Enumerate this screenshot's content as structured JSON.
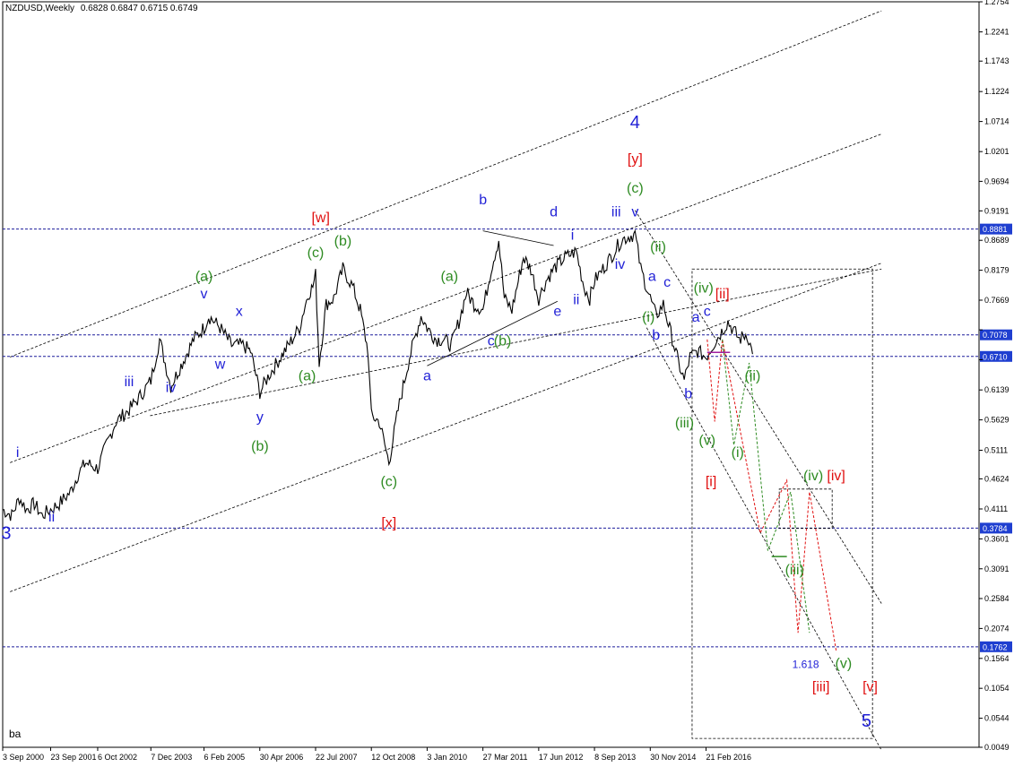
{
  "header": {
    "symbol": "NZDUSD,Weekly",
    "ohlc": "0.6828 0.6847 0.6715 0.6749"
  },
  "corner_text": "ba",
  "colors": {
    "blue": "#1f1fd6",
    "green": "#2e8b22",
    "red": "#e01010",
    "price": "#000000",
    "grid": "#1c1c9c",
    "markerbg": "#1f3fd0"
  },
  "chart_data": {
    "type": "line",
    "title": "NZDUSD,Weekly",
    "ylim": [
      0.0049,
      1.2754
    ],
    "y_ticks": [
      "1.2754",
      "1.2241",
      "1.1743",
      "1.1224",
      "1.0714",
      "1.0201",
      "0.9694",
      "0.9191",
      "0.8689",
      "0.8179",
      "0.7669",
      "0.7163",
      "0.6654",
      "0.6139",
      "0.5629",
      "0.5111",
      "0.4624",
      "0.4111",
      "0.3601",
      "0.3091",
      "0.2584",
      "0.2074",
      "0.1564",
      "0.1054",
      "0.0544",
      "0.0049"
    ],
    "x_ticks": [
      "3 Sep 2000",
      "23 Sep 2001",
      "6 Oct 2002",
      "7 Dec 2003",
      "6 Feb 2005",
      "30 Apr 2006",
      "22 Jul 2007",
      "12 Oct 2008",
      "3 Jan 2010",
      "27 Mar 2011",
      "17 Jun 2012",
      "8 Sep 2013",
      "30 Nov 2014",
      "21 Feb 2016"
    ],
    "x_range": [
      "3 Sep 2000",
      "5 Mar 2017"
    ],
    "series": [
      {
        "values": [
          [
            "2000-09-03",
            0.41
          ],
          [
            "2000-11-15",
            0.4
          ],
          [
            "2001-01-15",
            0.43
          ],
          [
            "2001-03-15",
            0.41
          ],
          [
            "2001-05-15",
            0.42
          ],
          [
            "2001-07-15",
            0.4
          ],
          [
            "2001-09-23",
            0.41
          ],
          [
            "2001-12-01",
            0.42
          ],
          [
            "2002-03-01",
            0.44
          ],
          [
            "2002-05-01",
            0.47
          ],
          [
            "2002-07-01",
            0.49
          ],
          [
            "2002-10-06",
            0.48
          ],
          [
            "2002-12-15",
            0.52
          ],
          [
            "2003-03-01",
            0.56
          ],
          [
            "2003-06-15",
            0.58
          ],
          [
            "2003-09-01",
            0.6
          ],
          [
            "2003-12-07",
            0.63
          ],
          [
            "2004-02-15",
            0.7
          ],
          [
            "2004-05-15",
            0.62
          ],
          [
            "2004-08-15",
            0.66
          ],
          [
            "2004-11-15",
            0.7
          ],
          [
            "2005-02-06",
            0.72
          ],
          [
            "2005-03-15",
            0.74
          ],
          [
            "2005-06-15",
            0.72
          ],
          [
            "2005-09-15",
            0.69
          ],
          [
            "2005-12-15",
            0.69
          ],
          [
            "2006-02-15",
            0.68
          ],
          [
            "2006-04-30",
            0.61
          ],
          [
            "2006-07-15",
            0.64
          ],
          [
            "2006-10-15",
            0.67
          ],
          [
            "2007-01-15",
            0.7
          ],
          [
            "2007-03-15",
            0.72
          ],
          [
            "2007-04-30",
            0.76
          ],
          [
            "2007-05-31",
            0.78
          ],
          [
            "2007-06-30",
            0.79
          ],
          [
            "2007-07-22",
            0.81
          ],
          [
            "2007-08-20",
            0.66
          ],
          [
            "2007-10-15",
            0.76
          ],
          [
            "2007-12-15",
            0.77
          ],
          [
            "2008-02-26",
            0.82
          ],
          [
            "2008-05-15",
            0.79
          ],
          [
            "2008-07-15",
            0.75
          ],
          [
            "2008-09-15",
            0.68
          ],
          [
            "2008-10-12",
            0.57
          ],
          [
            "2008-12-15",
            0.56
          ],
          [
            "2009-03-02",
            0.49
          ],
          [
            "2009-05-15",
            0.58
          ],
          [
            "2009-08-15",
            0.67
          ],
          [
            "2009-11-15",
            0.74
          ],
          [
            "2010-01-03",
            0.72
          ],
          [
            "2010-03-15",
            0.7
          ],
          [
            "2010-05-15",
            0.7
          ],
          [
            "2010-07-15",
            0.69
          ],
          [
            "2010-09-15",
            0.73
          ],
          [
            "2010-11-15",
            0.78
          ],
          [
            "2011-01-15",
            0.76
          ],
          [
            "2011-03-27",
            0.75
          ],
          [
            "2011-06-01",
            0.82
          ],
          [
            "2011-08-01",
            0.87
          ],
          [
            "2011-09-15",
            0.77
          ],
          [
            "2011-11-15",
            0.75
          ],
          [
            "2012-02-15",
            0.84
          ],
          [
            "2012-04-15",
            0.82
          ],
          [
            "2012-06-17",
            0.77
          ],
          [
            "2012-08-15",
            0.8
          ],
          [
            "2012-10-15",
            0.82
          ],
          [
            "2013-01-15",
            0.84
          ],
          [
            "2013-04-15",
            0.85
          ],
          [
            "2013-06-15",
            0.79
          ],
          [
            "2013-08-01",
            0.77
          ],
          [
            "2013-09-08",
            0.8
          ],
          [
            "2013-11-15",
            0.82
          ],
          [
            "2014-01-15",
            0.84
          ],
          [
            "2014-04-15",
            0.87
          ],
          [
            "2014-07-31",
            0.88
          ],
          [
            "2014-09-15",
            0.82
          ],
          [
            "2014-11-30",
            0.77
          ],
          [
            "2015-01-15",
            0.74
          ],
          [
            "2015-03-15",
            0.76
          ],
          [
            "2015-05-15",
            0.71
          ],
          [
            "2015-07-15",
            0.66
          ],
          [
            "2015-08-30",
            0.63
          ],
          [
            "2015-10-15",
            0.67
          ],
          [
            "2015-12-15",
            0.68
          ],
          [
            "2016-02-21",
            0.67
          ],
          [
            "2016-04-15",
            0.69
          ],
          [
            "2016-06-15",
            0.71
          ],
          [
            "2016-08-15",
            0.73
          ],
          [
            "2016-09-15",
            0.72
          ],
          [
            "2016-11-15",
            0.7
          ],
          [
            "2017-01-15",
            0.71
          ],
          [
            "2017-02-10",
            0.69
          ],
          [
            "2017-03-01",
            0.6749
          ]
        ]
      }
    ],
    "horizontal_lines": [
      {
        "label": "0.8881",
        "value": 0.8881
      },
      {
        "label": "0.7078",
        "value": 0.7078
      },
      {
        "label": "0.6710",
        "value": 0.671
      },
      {
        "label": "0.3784",
        "value": 0.3784
      },
      {
        "label": "0.1762",
        "value": 0.1762
      }
    ],
    "wave_labels": [
      {
        "text": "3",
        "color": "blue",
        "size": 20,
        "date": "2000-10-01",
        "price": 0.36
      },
      {
        "text": "i",
        "color": "blue",
        "size": 16,
        "date": "2001-01-01",
        "price": 0.5
      },
      {
        "text": "ii",
        "color": "blue",
        "size": 16,
        "date": "2001-10-01",
        "price": 0.39
      },
      {
        "text": "iii",
        "color": "blue",
        "size": 16,
        "date": "2003-06-15",
        "price": 0.62
      },
      {
        "text": "iv",
        "color": "blue",
        "size": 16,
        "date": "2004-05-15",
        "price": 0.61
      },
      {
        "text": "v",
        "color": "blue",
        "size": 16,
        "date": "2005-02-06",
        "price": 0.77
      },
      {
        "text": "w",
        "color": "blue",
        "size": 16,
        "date": "2005-06-15",
        "price": 0.65
      },
      {
        "text": "x",
        "color": "blue",
        "size": 16,
        "date": "2005-11-15",
        "price": 0.74
      },
      {
        "text": "y",
        "color": "blue",
        "size": 16,
        "date": "2006-05-01",
        "price": 0.56
      },
      {
        "text": "(a)",
        "color": "green",
        "size": 16,
        "date": "2005-02-06",
        "price": 0.8
      },
      {
        "text": "(b)",
        "color": "green",
        "size": 16,
        "date": "2006-05-01",
        "price": 0.51
      },
      {
        "text": "(c)",
        "color": "green",
        "size": 16,
        "date": "2007-07-22",
        "price": 0.84
      },
      {
        "text": "(a)",
        "color": "green",
        "size": 16,
        "date": "2007-05-15",
        "price": 0.63
      },
      {
        "text": "[w]",
        "color": "red",
        "size": 16,
        "date": "2007-09-01",
        "price": 0.9
      },
      {
        "text": "(b)",
        "color": "green",
        "size": 16,
        "date": "2008-02-26",
        "price": 0.86
      },
      {
        "text": "(c)",
        "color": "green",
        "size": 16,
        "date": "2009-03-02",
        "price": 0.45
      },
      {
        "text": "[x]",
        "color": "red",
        "size": 16,
        "date": "2009-03-02",
        "price": 0.38
      },
      {
        "text": "(a)",
        "color": "green",
        "size": 16,
        "date": "2010-07-01",
        "price": 0.8
      },
      {
        "text": "a",
        "color": "blue",
        "size": 16,
        "date": "2010-01-03",
        "price": 0.63
      },
      {
        "text": "(b)",
        "color": "green",
        "size": 16,
        "date": "2011-09-01",
        "price": 0.69
      },
      {
        "text": "c",
        "color": "blue",
        "size": 16,
        "date": "2011-06-01",
        "price": 0.69
      },
      {
        "text": "b",
        "color": "blue",
        "size": 16,
        "date": "2011-03-27",
        "price": 0.93
      },
      {
        "text": "d",
        "color": "blue",
        "size": 16,
        "date": "2012-10-15",
        "price": 0.91
      },
      {
        "text": "e",
        "color": "blue",
        "size": 16,
        "date": "2012-11-15",
        "price": 0.74
      },
      {
        "text": "i",
        "color": "blue",
        "size": 16,
        "date": "2013-03-15",
        "price": 0.87
      },
      {
        "text": "ii",
        "color": "blue",
        "size": 16,
        "date": "2013-04-15",
        "price": 0.76
      },
      {
        "text": "iii",
        "color": "blue",
        "size": 16,
        "date": "2014-03-01",
        "price": 0.91
      },
      {
        "text": "iv",
        "color": "blue",
        "size": 16,
        "date": "2014-04-01",
        "price": 0.82
      },
      {
        "text": "v",
        "color": "blue",
        "size": 16,
        "date": "2014-07-31",
        "price": 0.91
      },
      {
        "text": "4",
        "color": "blue",
        "size": 20,
        "date": "2014-07-31",
        "price": 1.06
      },
      {
        "text": "[y]",
        "color": "red",
        "size": 16,
        "date": "2014-07-31",
        "price": 1.0
      },
      {
        "text": "(c)",
        "color": "green",
        "size": 16,
        "date": "2014-07-31",
        "price": 0.95
      },
      {
        "text": "(ii)",
        "color": "green",
        "size": 16,
        "date": "2015-02-01",
        "price": 0.85
      },
      {
        "text": "a",
        "color": "blue",
        "size": 16,
        "date": "2014-12-15",
        "price": 0.8
      },
      {
        "text": "c",
        "color": "blue",
        "size": 16,
        "date": "2015-04-15",
        "price": 0.79
      },
      {
        "text": "(i)",
        "color": "green",
        "size": 16,
        "date": "2014-11-15",
        "price": 0.73
      },
      {
        "text": "b",
        "color": "blue",
        "size": 16,
        "date": "2015-01-15",
        "price": 0.7
      },
      {
        "text": "(iv)",
        "color": "green",
        "size": 16,
        "date": "2016-02-01",
        "price": 0.78
      },
      {
        "text": "[ii]",
        "color": "red",
        "size": 16,
        "date": "2016-07-01",
        "price": 0.77
      },
      {
        "text": "a",
        "color": "blue",
        "size": 16,
        "date": "2015-12-01",
        "price": 0.73
      },
      {
        "text": "c",
        "color": "blue",
        "size": 16,
        "date": "2016-03-01",
        "price": 0.74
      },
      {
        "text": "b",
        "color": "blue",
        "size": 16,
        "date": "2015-10-01",
        "price": 0.6
      },
      {
        "text": "(iii)",
        "color": "green",
        "size": 16,
        "date": "2015-09-01",
        "price": 0.55
      },
      {
        "text": "(v)",
        "color": "green",
        "size": 16,
        "date": "2016-03-01",
        "price": 0.52
      },
      {
        "text": "[i]",
        "color": "red",
        "size": 16,
        "date": "2016-04-01",
        "price": 0.45
      },
      {
        "text": "(ii)",
        "color": "green",
        "size": 16,
        "date": "2017-03-01",
        "price": 0.63
      },
      {
        "text": "(i)",
        "color": "green",
        "size": 16,
        "date": "2016-11-01",
        "price": 0.5
      },
      {
        "text": "(iv)",
        "color": "green",
        "size": 16,
        "date": "2018-07-01",
        "price": 0.46
      },
      {
        "text": "[iv]",
        "color": "red",
        "size": 16,
        "date": "2019-01-01",
        "price": 0.46
      },
      {
        "text": "(iii)",
        "color": "green",
        "size": 16,
        "date": "2018-02-01",
        "price": 0.3
      },
      {
        "text": "1.618",
        "color": "blue",
        "size": 12,
        "date": "2018-05-01",
        "price": 0.14
      },
      {
        "text": "(v)",
        "color": "green",
        "size": 16,
        "date": "2019-03-01",
        "price": 0.14
      },
      {
        "text": "[iii]",
        "color": "red",
        "size": 16,
        "date": "2018-09-01",
        "price": 0.1
      },
      {
        "text": "[v]",
        "color": "red",
        "size": 16,
        "date": "2019-10-01",
        "price": 0.1
      },
      {
        "text": "5",
        "color": "blue",
        "size": 20,
        "date": "2019-09-01",
        "price": 0.04
      }
    ]
  }
}
